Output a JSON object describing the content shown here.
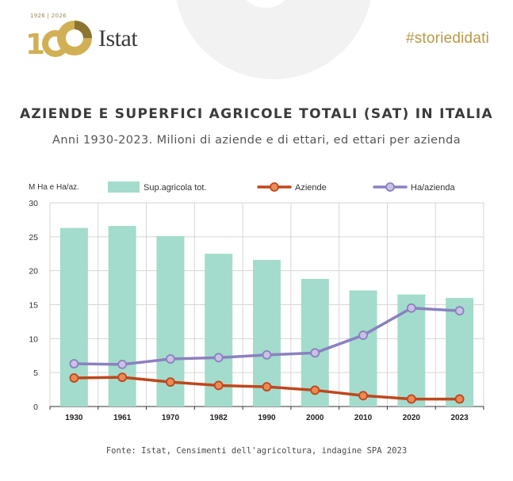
{
  "header": {
    "logo_years": "1926 | 2026",
    "logo_text": "Istat",
    "brand": "#storiedidati"
  },
  "title": "AZIENDE E SUPERFICI AGRICOLE TOTALI (SAT) IN ITALIA",
  "subtitle": "Anni 1930-2023. Milioni di aziende e di ettari, ed ettari per azienda",
  "source": "Fonte:  Istat, Censimenti dell'agricoltura, indagine SPA 2023",
  "chart_data": {
    "type": "bar",
    "ylabel": "M Ha e Ha/az.",
    "ylim": [
      0,
      30
    ],
    "yticks": [
      0,
      5,
      10,
      15,
      20,
      25,
      30
    ],
    "grid": true,
    "legend": "top",
    "categories": [
      "1930",
      "1961",
      "1970",
      "1982",
      "1990",
      "2000",
      "2010",
      "2020",
      "2023"
    ],
    "series": [
      {
        "name": "Sup.agricola tot.",
        "type": "bar",
        "color": "#a3dccc",
        "values": [
          26.3,
          26.6,
          25.1,
          22.5,
          21.6,
          18.8,
          17.1,
          16.5,
          16.0
        ]
      },
      {
        "name": "Aziende",
        "type": "line",
        "color": "#c0461c",
        "values": [
          4.2,
          4.3,
          3.6,
          3.1,
          2.9,
          2.4,
          1.6,
          1.1,
          1.1
        ]
      },
      {
        "name": "Ha/azienda",
        "type": "line",
        "color": "#8c80c0",
        "values": [
          6.3,
          6.2,
          7.0,
          7.2,
          7.6,
          7.9,
          10.5,
          14.5,
          14.1
        ]
      }
    ]
  }
}
